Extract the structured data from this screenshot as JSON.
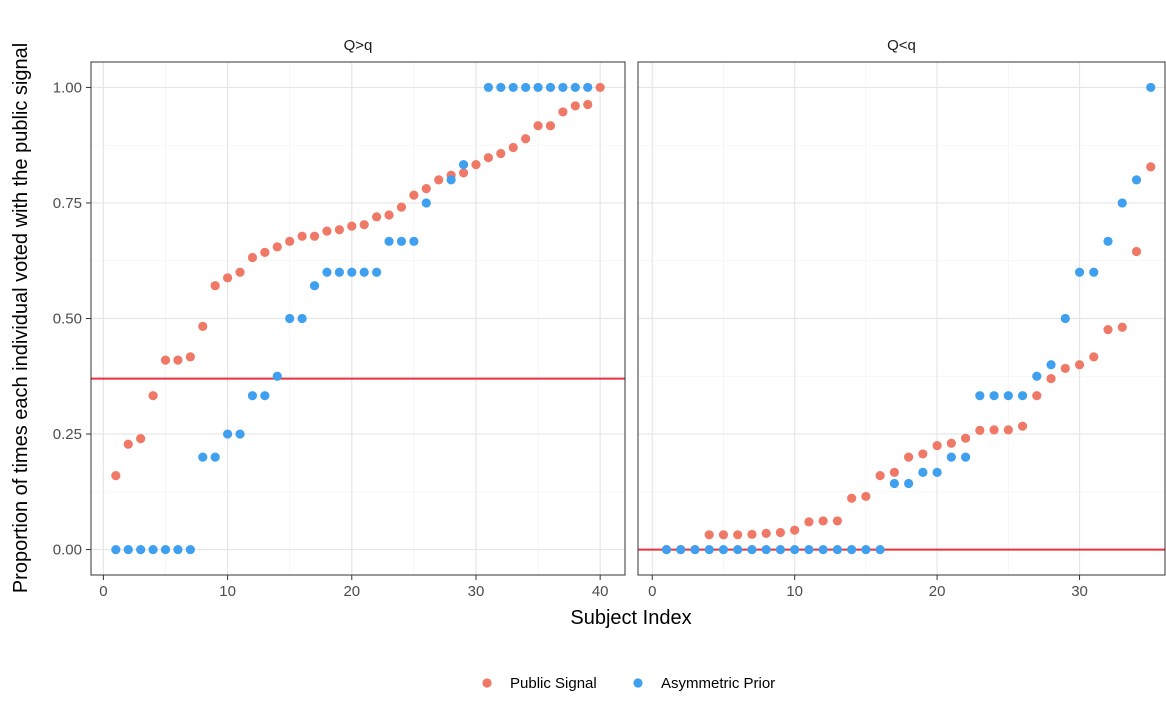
{
  "colors": {
    "public_signal": "#F07866",
    "asymmetric_prior": "#40A0F0",
    "reference_line": "#E8323C"
  },
  "chart_data": {
    "type": "scatter",
    "xlabel": "Subject Index",
    "ylabel": "Proportion of times each individual voted with the public signal",
    "yticks": [
      "0.00",
      "0.25",
      "0.50",
      "0.75",
      "1.00"
    ],
    "ylim": [
      -0.055,
      1.055
    ],
    "grid": true,
    "legend_position": "bottom",
    "legend": [
      {
        "name": "Public Signal",
        "color_key": "public_signal"
      },
      {
        "name": "Asymmetric Prior",
        "color_key": "asymmetric_prior"
      }
    ],
    "panels": [
      {
        "title": "Q>q",
        "xlim": [
          -1,
          42
        ],
        "xticks": [
          "0",
          "10",
          "20",
          "30",
          "40"
        ],
        "hline": 0.37,
        "series": [
          {
            "name": "Public Signal",
            "x": [
              1,
              2,
              3,
              4,
              5,
              6,
              7,
              8,
              9,
              10,
              11,
              12,
              13,
              14,
              15,
              16,
              17,
              18,
              19,
              20,
              21,
              22,
              23,
              24,
              25,
              26,
              27,
              28,
              29,
              30,
              31,
              32,
              33,
              34,
              35,
              36,
              37,
              38,
              39,
              40
            ],
            "y": [
              0.16,
              0.228,
              0.24,
              0.333,
              0.41,
              0.41,
              0.417,
              0.483,
              0.571,
              0.588,
              0.6,
              0.632,
              0.643,
              0.655,
              0.667,
              0.678,
              0.678,
              0.689,
              0.692,
              0.7,
              0.703,
              0.72,
              0.724,
              0.741,
              0.767,
              0.781,
              0.8,
              0.81,
              0.815,
              0.833,
              0.848,
              0.857,
              0.87,
              0.889,
              0.917,
              0.917,
              0.947,
              0.96,
              0.963,
              1.0
            ]
          },
          {
            "name": "Asymmetric Prior",
            "x": [
              1,
              2,
              3,
              4,
              5,
              6,
              7,
              8,
              9,
              10,
              11,
              12,
              13,
              14,
              15,
              16,
              17,
              18,
              19,
              20,
              21,
              22,
              23,
              24,
              25,
              26,
              28,
              29,
              31,
              32,
              33,
              34,
              35,
              36,
              37,
              38,
              39
            ],
            "y": [
              0,
              0,
              0,
              0,
              0,
              0,
              0,
              0.2,
              0.2,
              0.25,
              0.25,
              0.333,
              0.333,
              0.375,
              0.5,
              0.5,
              0.571,
              0.6,
              0.6,
              0.6,
              0.6,
              0.6,
              0.667,
              0.667,
              0.667,
              0.75,
              0.8,
              0.833,
              1,
              1,
              1,
              1,
              1,
              1,
              1,
              1,
              1
            ]
          }
        ]
      },
      {
        "title": "Q<q",
        "xlim": [
          -1,
          36
        ],
        "xticks": [
          "0",
          "10",
          "20",
          "30"
        ],
        "hline": 0.0,
        "series": [
          {
            "name": "Public Signal",
            "x": [
              1,
              2,
              3,
              4,
              5,
              6,
              7,
              8,
              9,
              10,
              11,
              12,
              13,
              14,
              15,
              16,
              17,
              18,
              19,
              20,
              21,
              22,
              23,
              24,
              25,
              26,
              27,
              28,
              29,
              30,
              31,
              32,
              33,
              34,
              35
            ],
            "y": [
              0,
              0,
              0,
              0.032,
              0.032,
              0.032,
              0.033,
              0.035,
              0.037,
              0.042,
              0.06,
              0.062,
              0.062,
              0.111,
              0.115,
              0.16,
              0.167,
              0.2,
              0.207,
              0.225,
              0.23,
              0.241,
              0.258,
              0.259,
              0.259,
              0.267,
              0.333,
              0.37,
              0.392,
              0.4,
              0.417,
              0.476,
              0.481,
              0.645,
              0.828
            ]
          },
          {
            "name": "Asymmetric Prior",
            "x": [
              1,
              2,
              3,
              4,
              5,
              6,
              7,
              8,
              9,
              10,
              11,
              12,
              13,
              14,
              15,
              16,
              17,
              18,
              19,
              20,
              21,
              22,
              23,
              24,
              25,
              26,
              27,
              28,
              29,
              30,
              31,
              32,
              33,
              34,
              35
            ],
            "y": [
              0,
              0,
              0,
              0,
              0,
              0,
              0,
              0,
              0,
              0,
              0,
              0,
              0,
              0,
              0,
              0,
              0.143,
              0.143,
              0.167,
              0.167,
              0.2,
              0.2,
              0.333,
              0.333,
              0.333,
              0.333,
              0.375,
              0.4,
              0.5,
              0.6,
              0.6,
              0.667,
              0.75,
              0.8,
              1.0
            ]
          }
        ]
      }
    ]
  }
}
